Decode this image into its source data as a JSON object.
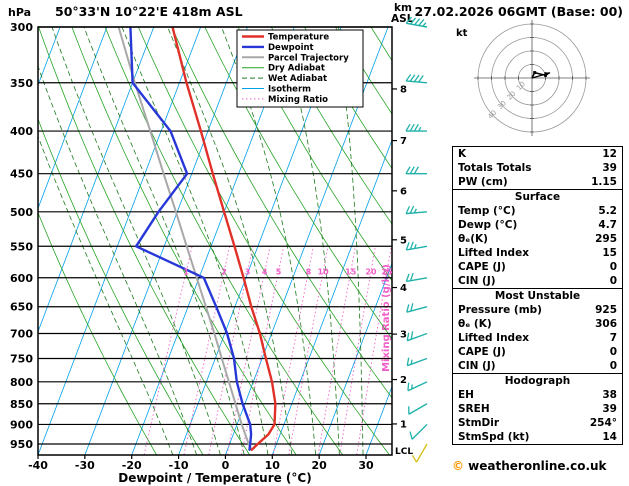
{
  "header": {
    "hpa_label": "hPa",
    "station": "50°33'N 10°22'E 418m ASL",
    "datetime": "27.02.2026 06GMT (Base: 00)",
    "km_label": "km",
    "asl_label": "ASL",
    "kt_label": "kt",
    "copyright_symbol": "©",
    "copyright_text": " weatheronline.co.uk"
  },
  "axes": {
    "pressure_ticks": [
      300,
      350,
      400,
      450,
      500,
      550,
      600,
      650,
      700,
      750,
      800,
      850,
      900,
      950
    ],
    "temp_ticks": [
      -40,
      -30,
      -20,
      -10,
      0,
      10,
      20,
      30
    ],
    "xlabel": "Dewpoint / Temperature (°C)",
    "mixing_ratio_axis_label": "Mixing Ratio (g/kg)",
    "km_ticks": [
      1,
      2,
      3,
      4,
      5,
      6,
      7,
      8
    ],
    "lcl_label": "LCL"
  },
  "styles": {
    "temperature": "#e03028",
    "dewpoint": "#2838d8",
    "parcel": "#a8a8a8",
    "dry_adiabat": "#27a427",
    "wet_adiabat": "#1d7a1d",
    "isotherm": "#00a0e8",
    "mixing_ratio": "#f060c8",
    "barb": "#20b2aa",
    "barb_surface": "#d8c020"
  },
  "legend": [
    {
      "label": "Temperature",
      "color": "#e03028",
      "width": 2.4,
      "dash": ""
    },
    {
      "label": "Dewpoint",
      "color": "#2838d8",
      "width": 2.4,
      "dash": ""
    },
    {
      "label": "Parcel Trajectory",
      "color": "#a8a8a8",
      "width": 2,
      "dash": ""
    },
    {
      "label": "Dry Adiabat",
      "color": "#27a427",
      "width": 1,
      "dash": ""
    },
    {
      "label": "Wet Adiabat",
      "color": "#1d7a1d",
      "width": 1,
      "dash": "5 3"
    },
    {
      "label": "Isotherm",
      "color": "#00a0e8",
      "width": 1,
      "dash": ""
    },
    {
      "label": "Mixing Ratio",
      "color": "#f060c8",
      "width": 1,
      "dash": "1.5 2.5"
    }
  ],
  "chart_data": {
    "type": "line",
    "variant": "skew-t-log-p-sounding",
    "title": "50°33'N 10°22'E 418m ASL",
    "valid": "27.02.2026 06GMT (Base: 00)",
    "pressure_axis_hpa": {
      "min": 300,
      "max": 979,
      "scale": "log"
    },
    "temperature_axis_c": {
      "min": -40,
      "max": 35
    },
    "isotherms_c": {
      "min": -120,
      "max": 40,
      "step": 10
    },
    "dry_adiabats_theta_k": {
      "min": 260,
      "max": 440,
      "step": 10
    },
    "wet_adiabat_surface_temps_c": [
      -10,
      -5,
      0,
      5,
      10,
      15,
      20,
      25,
      30
    ],
    "mixing_ratio_lines_g_per_kg": [
      1,
      2,
      3,
      4,
      5,
      8,
      10,
      15,
      20,
      25
    ],
    "mixing_ratio_label_pressure_hpa": 590,
    "lcl_pressure_hpa": 952,
    "temperature_profile": [
      [
        965,
        5.2
      ],
      [
        950,
        6.0
      ],
      [
        925,
        7.5
      ],
      [
        900,
        8.0
      ],
      [
        850,
        6.5
      ],
      [
        800,
        4.0
      ],
      [
        750,
        0.8
      ],
      [
        700,
        -2.5
      ],
      [
        650,
        -6.5
      ],
      [
        600,
        -10.5
      ],
      [
        550,
        -15.0
      ],
      [
        500,
        -20.0
      ],
      [
        450,
        -25.5
      ],
      [
        400,
        -31.5
      ],
      [
        350,
        -38.5
      ],
      [
        300,
        -46.0
      ]
    ],
    "dewpoint_profile": [
      [
        965,
        4.7
      ],
      [
        950,
        4.4
      ],
      [
        925,
        3.8
      ],
      [
        900,
        2.8
      ],
      [
        850,
        -0.5
      ],
      [
        800,
        -3.5
      ],
      [
        750,
        -6.0
      ],
      [
        700,
        -9.5
      ],
      [
        650,
        -14.0
      ],
      [
        600,
        -19.0
      ],
      [
        550,
        -36.0
      ],
      [
        500,
        -34.0
      ],
      [
        450,
        -31.0
      ],
      [
        400,
        -38.0
      ],
      [
        350,
        -50.0
      ],
      [
        300,
        -55.0
      ]
    ],
    "parcel_profile": [
      [
        965,
        5.2
      ],
      [
        952,
        4.2
      ],
      [
        900,
        1.0
      ],
      [
        850,
        -2.0
      ],
      [
        800,
        -5.2
      ],
      [
        750,
        -8.6
      ],
      [
        700,
        -12.2
      ],
      [
        650,
        -16.2
      ],
      [
        600,
        -20.5
      ],
      [
        550,
        -25.2
      ],
      [
        500,
        -30.3
      ],
      [
        450,
        -36.0
      ],
      [
        400,
        -42.3
      ],
      [
        350,
        -49.5
      ],
      [
        300,
        -57.5
      ]
    ],
    "wind_barbs": [
      {
        "p": 300,
        "speed_kt": 45,
        "dir_deg": 280
      },
      {
        "p": 350,
        "speed_kt": 40,
        "dir_deg": 275
      },
      {
        "p": 400,
        "speed_kt": 35,
        "dir_deg": 270
      },
      {
        "p": 450,
        "speed_kt": 30,
        "dir_deg": 270
      },
      {
        "p": 500,
        "speed_kt": 25,
        "dir_deg": 265
      },
      {
        "p": 550,
        "speed_kt": 25,
        "dir_deg": 260
      },
      {
        "p": 600,
        "speed_kt": 20,
        "dir_deg": 260
      },
      {
        "p": 650,
        "speed_kt": 20,
        "dir_deg": 255
      },
      {
        "p": 700,
        "speed_kt": 20,
        "dir_deg": 250
      },
      {
        "p": 750,
        "speed_kt": 15,
        "dir_deg": 250
      },
      {
        "p": 800,
        "speed_kt": 15,
        "dir_deg": 245
      },
      {
        "p": 850,
        "speed_kt": 10,
        "dir_deg": 240
      },
      {
        "p": 900,
        "speed_kt": 10,
        "dir_deg": 225
      },
      {
        "p": 950,
        "speed_kt": 10,
        "dir_deg": 210,
        "surface": true
      }
    ],
    "hodograph": {
      "rings_kt": [
        10,
        20,
        30,
        40
      ],
      "trace_uv_kt": [
        [
          0,
          0
        ],
        [
          2,
          4
        ],
        [
          6,
          3
        ],
        [
          10,
          2
        ],
        [
          13,
          4
        ]
      ],
      "storm_motion": {
        "dir_deg": 254,
        "speed_kt": 14
      }
    }
  },
  "indices": {
    "groups": [
      {
        "title": "",
        "rows": [
          [
            "K",
            "12"
          ],
          [
            "Totals Totals",
            "39"
          ],
          [
            "PW (cm)",
            "1.15"
          ]
        ]
      },
      {
        "title": "Surface",
        "rows": [
          [
            "Temp (°C)",
            "5.2"
          ],
          [
            "Dewp (°C)",
            "4.7"
          ],
          [
            "θₑ(K)",
            "295"
          ],
          [
            "Lifted Index",
            "15"
          ],
          [
            "CAPE (J)",
            "0"
          ],
          [
            "CIN (J)",
            "0"
          ]
        ]
      },
      {
        "title": "Most Unstable",
        "rows": [
          [
            "Pressure (mb)",
            "925"
          ],
          [
            "θₑ (K)",
            "306"
          ],
          [
            "Lifted Index",
            "7"
          ],
          [
            "CAPE (J)",
            "0"
          ],
          [
            "CIN (J)",
            "0"
          ]
        ]
      },
      {
        "title": "Hodograph",
        "rows": [
          [
            "EH",
            "38"
          ],
          [
            "SREH",
            "39"
          ],
          [
            "StmDir",
            "254°"
          ],
          [
            "StmSpd (kt)",
            "14"
          ]
        ]
      }
    ]
  }
}
